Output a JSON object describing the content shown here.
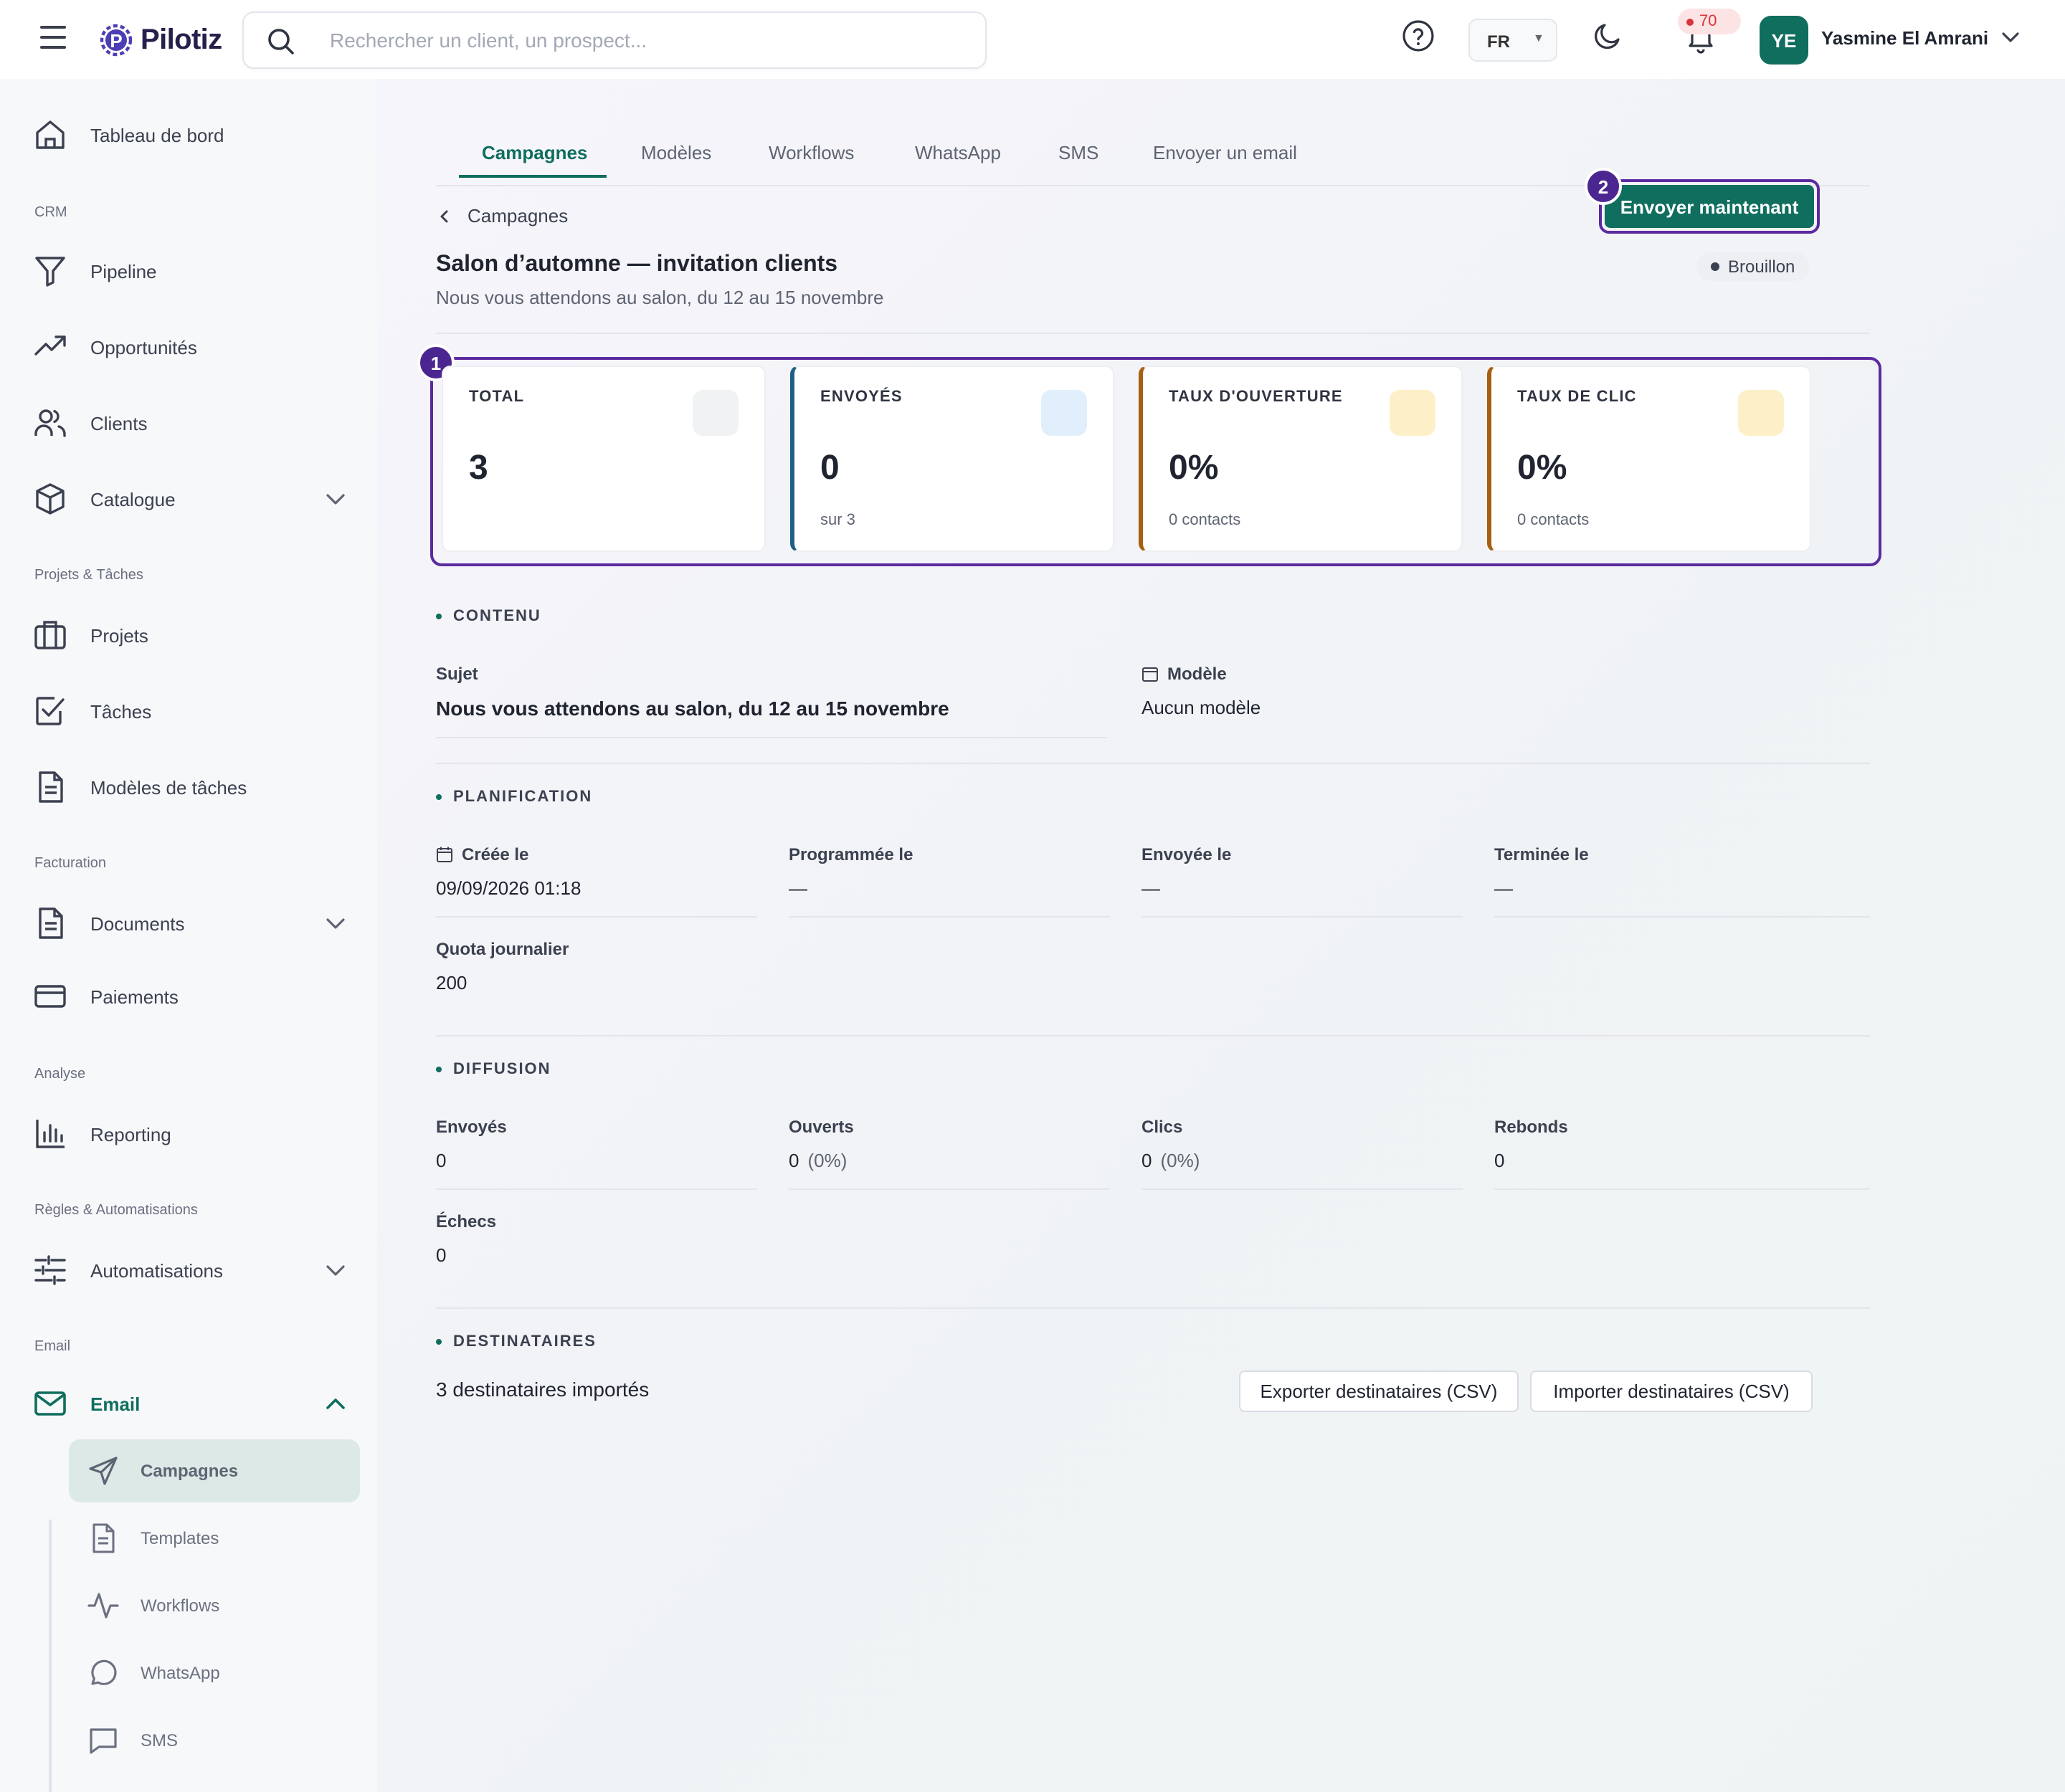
{
  "app": {
    "logo_text": "Pilotiz",
    "brand_color": "#0f6e5e",
    "highlight_color": "#5b2aa0"
  },
  "header": {
    "search_placeholder": "Rechercher un client, un prospect...",
    "language": "FR",
    "notifications_count": "70",
    "user_initials": "YE",
    "user_name": "Yasmine El Amrani"
  },
  "sidebar": {
    "dashboard": "Tableau de bord",
    "sections": {
      "crm": "CRM",
      "projects": "Projets & Tâches",
      "billing": "Facturation",
      "analysis": "Analyse",
      "rules": "Règles & Automatisations",
      "email": "Email"
    },
    "items": {
      "pipeline": "Pipeline",
      "opportunities": "Opportunités",
      "clients": "Clients",
      "catalogue": "Catalogue",
      "projects": "Projets",
      "tasks": "Tâches",
      "task_templates": "Modèles de tâches",
      "documents": "Documents",
      "payments": "Paiements",
      "reporting": "Reporting",
      "automations": "Automatisations",
      "email": "Email"
    },
    "email_sub": {
      "campaigns": "Campagnes",
      "templates": "Templates",
      "workflows": "Workflows",
      "whatsapp": "WhatsApp",
      "sms": "SMS"
    }
  },
  "tabs": [
    "Campagnes",
    "Modèles",
    "Workflows",
    "WhatsApp",
    "SMS",
    "Envoyer un email"
  ],
  "breadcrumb": "Campagnes",
  "send_now": "Envoyer maintenant",
  "badges": {
    "stats": "1",
    "send": "2"
  },
  "campaign": {
    "title": "Salon d’automne — invitation clients",
    "subtitle": "Nous vous attendons au salon, du 12 au 15 novembre",
    "status": "Brouillon"
  },
  "stats": [
    {
      "label": "TOTAL",
      "value": "3",
      "sub": "",
      "accent": "",
      "icon_bg": "#f1f2f4"
    },
    {
      "label": "ENVOYÉS",
      "value": "0",
      "sub": "sur 3",
      "accent": "#1f5f86",
      "icon_bg": "#e1effc"
    },
    {
      "label": "TAUX D'OUVERTURE",
      "value": "0%",
      "sub": "0 contacts",
      "accent": "#a66010",
      "icon_bg": "#fdf0c8"
    },
    {
      "label": "TAUX DE CLIC",
      "value": "0%",
      "sub": "0 contacts",
      "accent": "#a66010",
      "icon_bg": "#fdf0c8"
    }
  ],
  "contenu": {
    "title": "CONTENU",
    "subject_label": "Sujet",
    "subject_value": "Nous vous attendons au salon, du 12 au 15 novembre",
    "template_label": "Modèle",
    "template_value": "Aucun modèle"
  },
  "planification": {
    "title": "PLANIFICATION",
    "created_label": "Créée le",
    "created_value": "09/09/2026 01:18",
    "scheduled_label": "Programmée le",
    "scheduled_value": "—",
    "sent_label": "Envoyée le",
    "sent_value": "—",
    "finished_label": "Terminée le",
    "finished_value": "—",
    "quota_label": "Quota journalier",
    "quota_value": "200"
  },
  "diffusion": {
    "title": "DIFFUSION",
    "sent_label": "Envoyés",
    "sent_value": "0",
    "opened_label": "Ouverts",
    "opened_value": "0",
    "opened_pct": "(0%)",
    "clicks_label": "Clics",
    "clicks_value": "0",
    "clicks_pct": "(0%)",
    "bounces_label": "Rebonds",
    "bounces_value": "0",
    "failures_label": "Échecs",
    "failures_value": "0"
  },
  "destinataires": {
    "title": "DESTINATAIRES",
    "summary": "3 destinataires importés",
    "export_btn": "Exporter destinataires (CSV)",
    "import_btn": "Importer destinataires (CSV)"
  }
}
